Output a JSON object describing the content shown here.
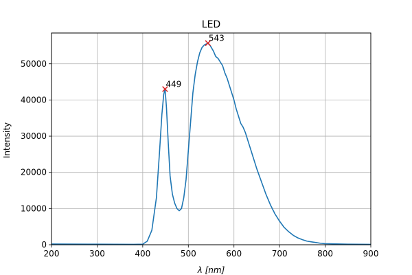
{
  "chart_data": {
    "type": "line",
    "title": "LED",
    "xlabel": "λ [nm]",
    "ylabel": "Intensity",
    "xlim": [
      200,
      900
    ],
    "ylim": [
      0,
      58500
    ],
    "xticks": [
      200,
      300,
      400,
      500,
      600,
      700,
      800,
      900
    ],
    "xtick_labels": [
      "200",
      "300",
      "400",
      "500",
      "600",
      "700",
      "800",
      "900"
    ],
    "yticks": [
      0,
      10000,
      20000,
      30000,
      40000,
      50000
    ],
    "ytick_labels": [
      "0",
      "10000",
      "20000",
      "30000",
      "40000",
      "50000"
    ],
    "grid": true,
    "line_color": "#1f77b4",
    "marker_color": "#d62728",
    "series": [
      {
        "x": [
          200,
          300,
          380,
          400,
          410,
          420,
          430,
          437,
          442,
          446,
          449,
          452,
          456,
          460,
          465,
          470,
          475,
          480,
          485,
          490,
          495,
          500,
          505,
          510,
          515,
          520,
          525,
          530,
          535,
          540,
          543,
          548,
          555,
          560,
          565,
          570,
          575,
          580,
          585,
          590,
          595,
          600,
          605,
          610,
          615,
          620,
          625,
          630,
          640,
          650,
          660,
          670,
          680,
          690,
          700,
          710,
          720,
          730,
          740,
          750,
          760,
          770,
          780,
          790,
          800,
          850,
          900
        ],
        "y": [
          200,
          150,
          100,
          150,
          1000,
          4000,
          13000,
          26000,
          36000,
          41500,
          43000,
          38000,
          28000,
          19000,
          14000,
          11500,
          10000,
          9400,
          10000,
          13000,
          18000,
          26000,
          34000,
          42000,
          47000,
          50500,
          53000,
          54500,
          55200,
          55500,
          55700,
          55000,
          53500,
          52000,
          51500,
          50500,
          49500,
          47500,
          46000,
          44000,
          42000,
          40000,
          37500,
          35500,
          33500,
          32500,
          31000,
          29000,
          25000,
          21000,
          17500,
          14000,
          11000,
          8500,
          6500,
          4800,
          3600,
          2600,
          1900,
          1400,
          1000,
          800,
          600,
          400,
          300,
          150,
          100
        ]
      }
    ],
    "peaks": [
      {
        "x": 449,
        "y": 43000,
        "label": "449"
      },
      {
        "x": 543,
        "y": 55700,
        "label": "543"
      }
    ]
  }
}
